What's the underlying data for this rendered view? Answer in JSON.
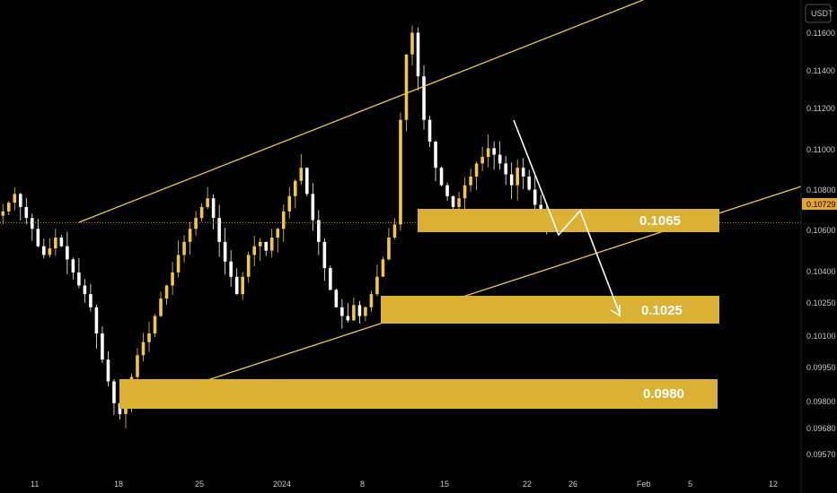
{
  "chart_data": {
    "type": "candlestick",
    "currency_label": "USDT",
    "current_price": "0.10729",
    "y_range": [
      0.0957,
      0.1175
    ],
    "y_ticks": [
      "0.11600",
      "0.11400",
      "0.11200",
      "0.11000",
      "0.10800",
      "0.10600",
      "0.10400",
      "0.10250",
      "0.10100",
      "0.09950",
      "0.09800",
      "0.09680",
      "0.09570"
    ],
    "x_ticks": [
      "11",
      "18",
      "25",
      "2024",
      "8",
      "15",
      "22",
      "26",
      "Feb",
      "5",
      "12"
    ],
    "zones": [
      {
        "label": "0.1065",
        "price": 0.1065
      },
      {
        "label": "0.1025",
        "price": 0.1025
      },
      {
        "label": "0.0980",
        "price": 0.098
      }
    ],
    "closes": [
      0.1078,
      0.1082,
      0.1086,
      0.108,
      0.1075,
      0.107,
      0.1062,
      0.1058,
      0.1061,
      0.1066,
      0.1062,
      0.1056,
      0.105,
      0.1044,
      0.104,
      0.1034,
      0.1022,
      0.101,
      0.1,
      0.099,
      0.0985,
      0.0992,
      0.1002,
      0.1012,
      0.1018,
      0.1022,
      0.103,
      0.1038,
      0.1044,
      0.105,
      0.1058,
      0.1064,
      0.107,
      0.1075,
      0.108,
      0.1084,
      0.1075,
      0.1064,
      0.1055,
      0.1048,
      0.104,
      0.1048,
      0.1058,
      0.1062,
      0.1064,
      0.106,
      0.1066,
      0.107,
      0.1078,
      0.1085,
      0.1092,
      0.1098,
      0.1086,
      0.1074,
      0.1064,
      0.1052,
      0.1042,
      0.1034,
      0.103,
      0.1028,
      0.1035,
      0.103,
      0.1034,
      0.104,
      0.1048,
      0.1056,
      0.1066,
      0.1072,
      0.112,
      0.115,
      0.116,
      0.114,
      0.112,
      0.111,
      0.1098,
      0.109,
      0.1085,
      0.108,
      0.1084,
      0.109,
      0.1094,
      0.11,
      0.1103,
      0.1107,
      0.1104,
      0.11,
      0.1095,
      0.109,
      0.1098,
      0.1094,
      0.1088,
      0.1081,
      0.1076,
      0.1073
    ]
  }
}
